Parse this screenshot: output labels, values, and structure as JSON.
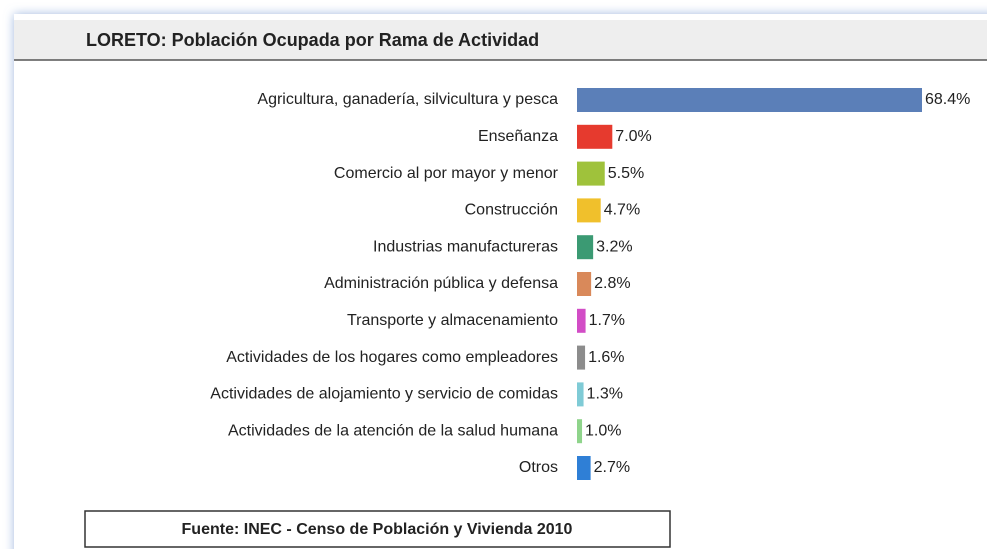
{
  "chart_data": {
    "type": "bar",
    "orientation": "horizontal",
    "title": "LORETO: Población Ocupada por Rama de Actividad",
    "categories": [
      "Agricultura, ganadería, silvicultura y pesca",
      "Enseñanza",
      "Comercio al por mayor y menor",
      "Construcción",
      "Industrias manufactureras",
      "Administración pública y defensa",
      "Transporte y almacenamiento",
      "Actividades de los hogares como empleadores",
      "Actividades de alojamiento y servicio de comidas",
      "Actividades de la atención de la salud humana",
      "Otros"
    ],
    "values": [
      68.4,
      7.0,
      5.5,
      4.7,
      3.2,
      2.8,
      1.7,
      1.6,
      1.3,
      1.0,
      2.7
    ],
    "value_labels": [
      "68.4%",
      "7.0%",
      "5.5%",
      "4.7%",
      "3.2%",
      "2.8%",
      "1.7%",
      "1.6%",
      "1.3%",
      "1.0%",
      "2.7%"
    ],
    "colors": [
      "#5b7fb8",
      "#e63a2e",
      "#9fc23b",
      "#f0c02c",
      "#3b9a73",
      "#d9895a",
      "#d24dc6",
      "#8c8c8c",
      "#7fcbd6",
      "#8fd48b",
      "#2f7fd6"
    ],
    "source": "Fuente: INEC -  Censo de Población y Vivienda  2010"
  }
}
